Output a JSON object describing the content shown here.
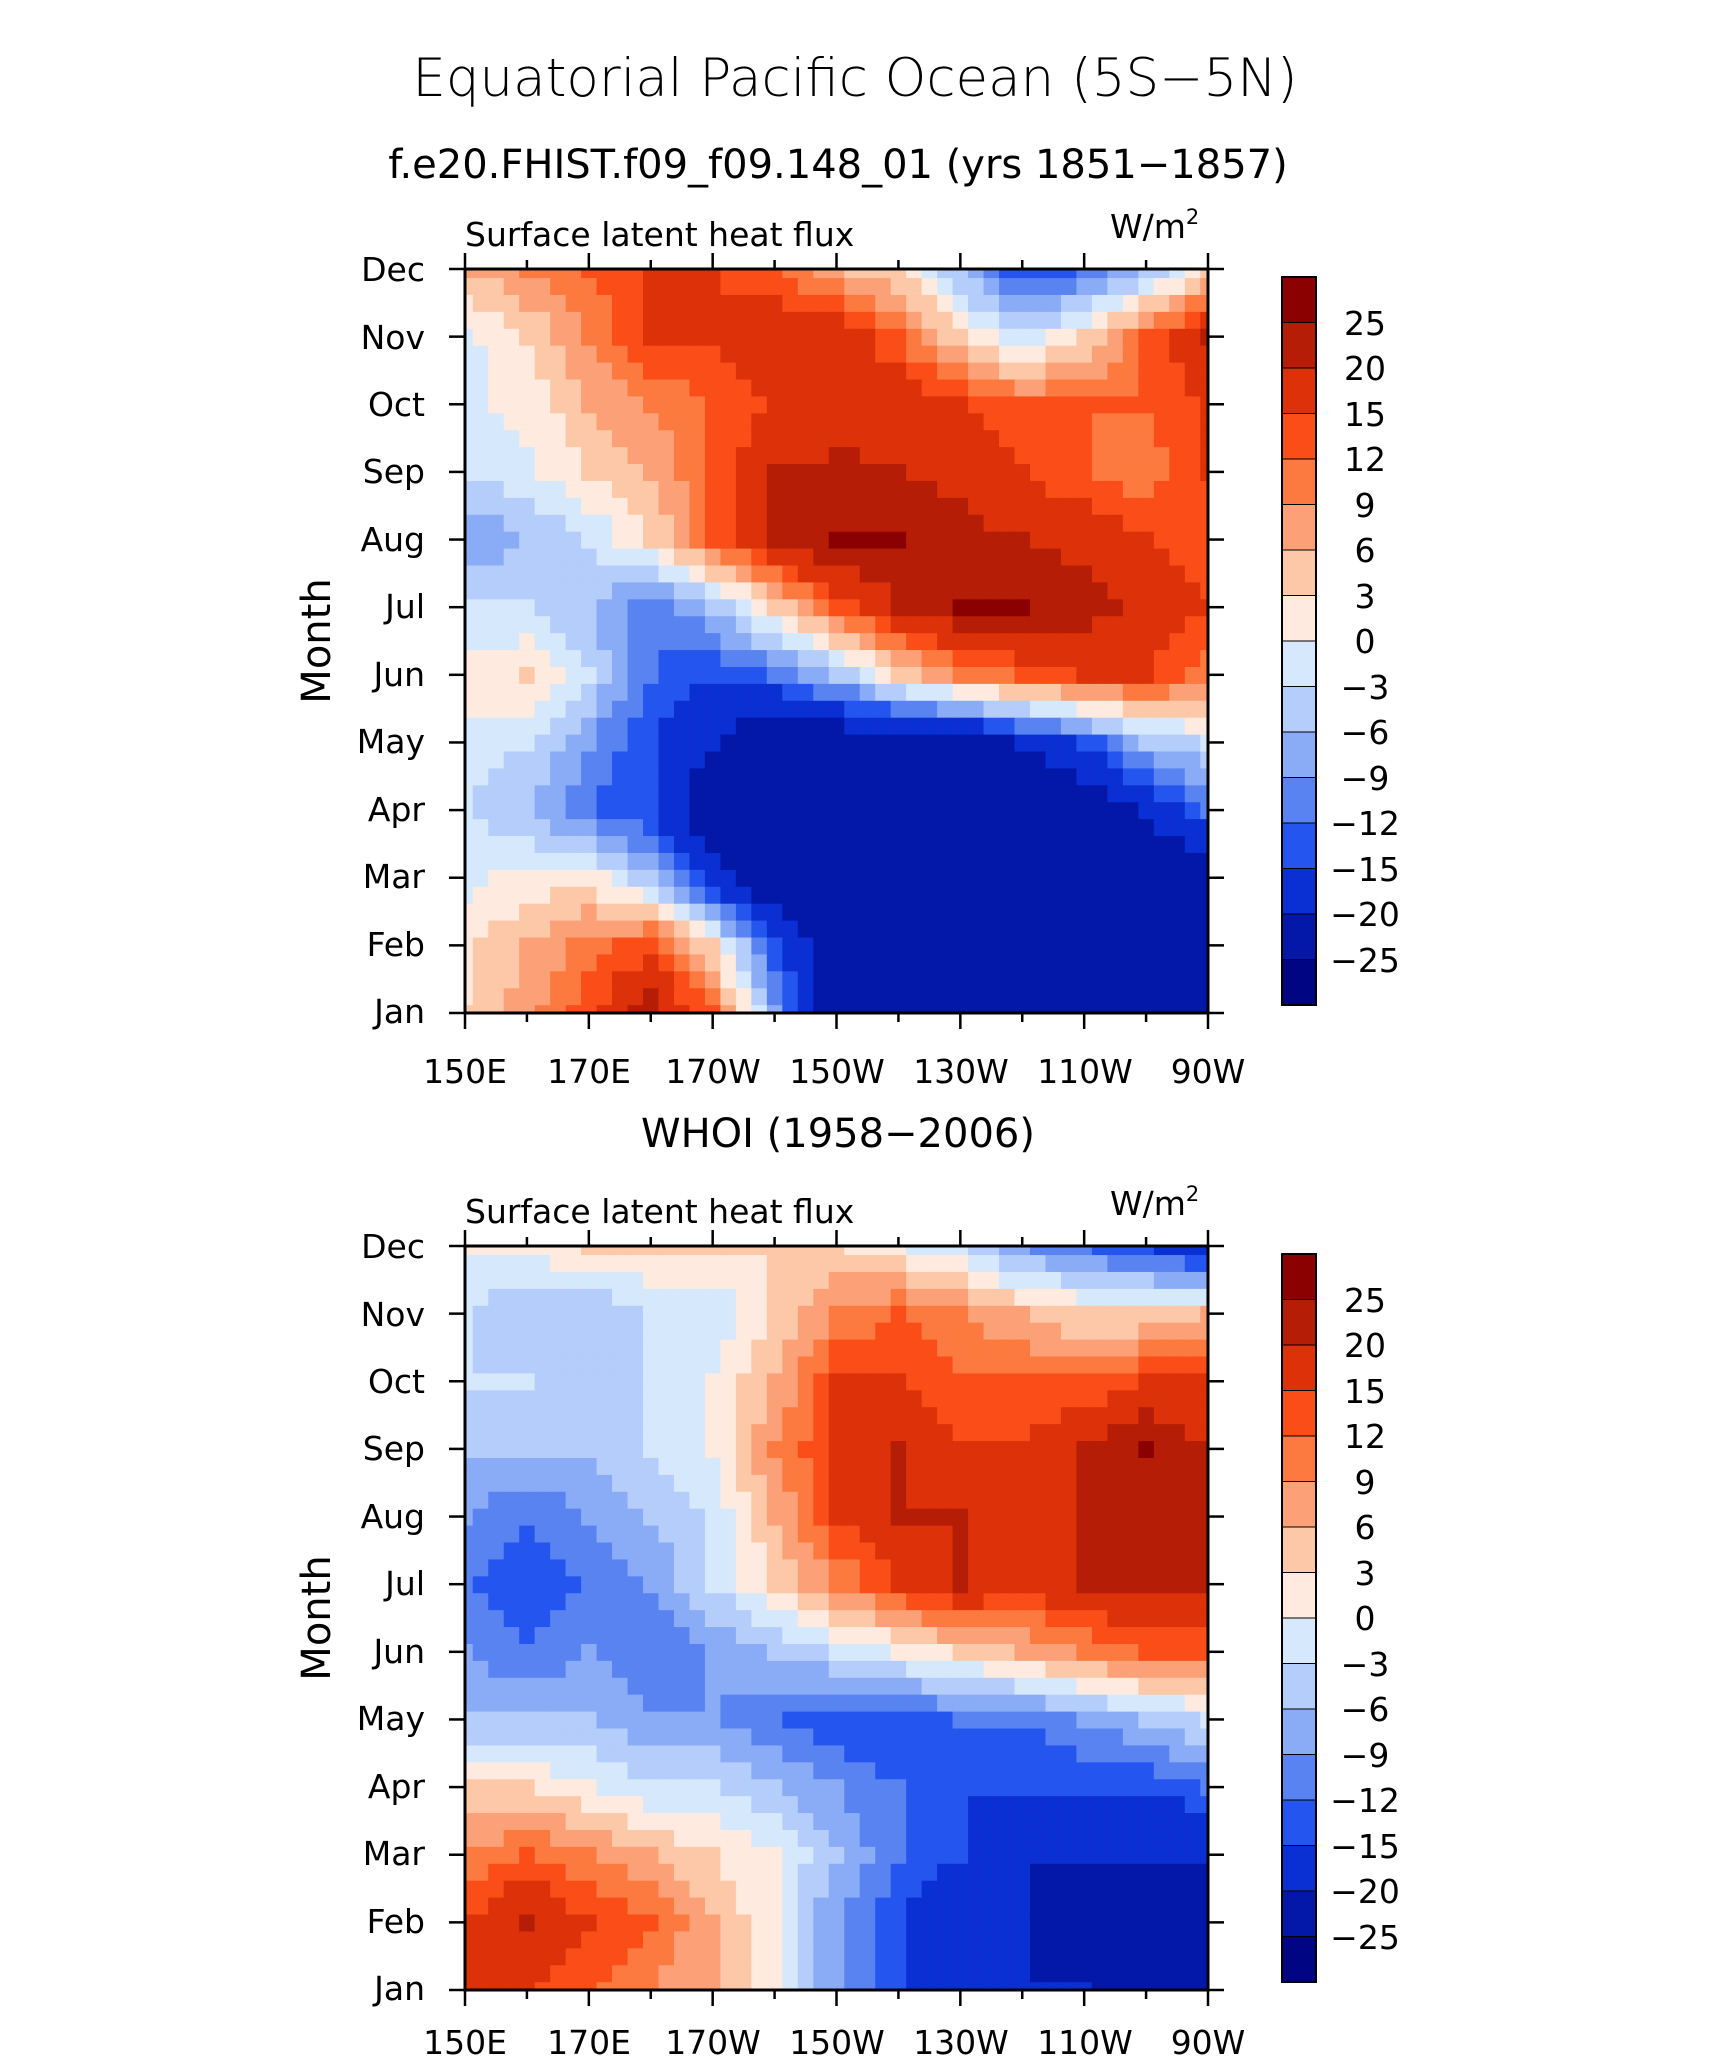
{
  "figure": {
    "title": "Equatorial Pacific Ocean (5S−5N)",
    "subtitle_top": "f.e20.FHIST.f09_f09.148_01 (yrs 1851−1857)",
    "subtitle_bottom": "WHOI (1958−2006)"
  },
  "colorbar": {
    "labels": [
      "25",
      "20",
      "15",
      "12",
      "9",
      "6",
      "3",
      "0",
      "−3",
      "−6",
      "−9",
      "−12",
      "−15",
      "−20",
      "−25"
    ],
    "levels": [
      25,
      20,
      15,
      12,
      9,
      6,
      3,
      0,
      -3,
      -6,
      -9,
      -12,
      -15,
      -20,
      -25
    ],
    "colors": [
      "#8b0000",
      "#b51d06",
      "#dc3109",
      "#fa4d17",
      "#fc7a3f",
      "#fca077",
      "#fdc8a7",
      "#feeade",
      "#d6e8fc",
      "#b5cdfa",
      "#8aabf5",
      "#5a83f2",
      "#2456ef",
      "#0a2fd2",
      "#0318a8",
      "#000584"
    ]
  },
  "chart_data": [
    {
      "type": "heatmap",
      "title": "Surface latent heat flux",
      "units": "W/m²",
      "units_label": "W/m",
      "units_sup": "2",
      "ylabel": "Month",
      "xlabel": "",
      "x_ticks": [
        "150E",
        "170E",
        "170W",
        "150W",
        "130W",
        "110W",
        "90W"
      ],
      "x_range_deg_east": [
        150,
        270
      ],
      "y_ticks": [
        "Jan",
        "Feb",
        "Mar",
        "Apr",
        "May",
        "Jun",
        "Jul",
        "Aug",
        "Sep",
        "Oct",
        "Nov",
        "Dec"
      ],
      "x_lon": [
        150,
        160,
        170,
        180,
        190,
        200,
        210,
        220,
        230,
        240,
        250,
        260,
        270
      ],
      "grid": [
        [
          3,
          8,
          14,
          22,
          12,
          -8,
          -25,
          -25,
          -25,
          -25,
          -25,
          -25,
          -25
        ],
        [
          2,
          6,
          10,
          14,
          3,
          -15,
          -25,
          -25,
          -25,
          -25,
          -25,
          -25,
          -25
        ],
        [
          -1,
          1,
          2,
          -6,
          -18,
          -25,
          -25,
          -25,
          -25,
          -25,
          -25,
          -25,
          -25
        ],
        [
          -3,
          -6,
          -12,
          -15,
          -25,
          -25,
          -25,
          -25,
          -25,
          -25,
          -25,
          -20,
          -12
        ],
        [
          -1,
          -3,
          -9,
          -15,
          -20,
          -25,
          -25,
          -25,
          -25,
          -20,
          -15,
          -6,
          -3
        ],
        [
          1,
          3,
          -3,
          -12,
          -15,
          -12,
          -6,
          3,
          9,
          12,
          15,
          15,
          10
        ],
        [
          -3,
          -3,
          -6,
          -12,
          -6,
          3,
          12,
          20,
          25,
          25,
          22,
          18,
          15
        ],
        [
          -9,
          -6,
          -3,
          3,
          12,
          20,
          25,
          25,
          22,
          20,
          18,
          15,
          12
        ],
        [
          -3,
          -1,
          3,
          6,
          12,
          20,
          22,
          20,
          18,
          15,
          12,
          10,
          15
        ],
        [
          -1,
          1,
          6,
          9,
          12,
          15,
          15,
          18,
          15,
          12,
          12,
          12,
          15
        ],
        [
          -1,
          3,
          9,
          15,
          15,
          18,
          18,
          12,
          3,
          -3,
          3,
          12,
          20
        ],
        [
          6,
          9,
          12,
          15,
          15,
          12,
          6,
          3,
          -6,
          -15,
          -12,
          -6,
          3
        ]
      ]
    },
    {
      "type": "heatmap",
      "title": "Surface latent heat flux",
      "units": "W/m²",
      "units_label": "W/m",
      "units_sup": "2",
      "ylabel": "Month",
      "xlabel": "",
      "x_ticks": [
        "150E",
        "170E",
        "170W",
        "150W",
        "130W",
        "110W",
        "90W"
      ],
      "x_range_deg_east": [
        150,
        270
      ],
      "y_ticks": [
        "Jan",
        "Feb",
        "Mar",
        "Apr",
        "May",
        "Jun",
        "Jul",
        "Aug",
        "Sep",
        "Oct",
        "Nov",
        "Dec"
      ],
      "x_lon": [
        150,
        160,
        170,
        180,
        190,
        200,
        210,
        220,
        230,
        240,
        250,
        260,
        270
      ],
      "grid": [
        [
          15,
          15,
          12,
          9,
          6,
          0,
          -9,
          -15,
          -20,
          -20,
          -20,
          -25,
          -25
        ],
        [
          15,
          20,
          15,
          12,
          6,
          0,
          -9,
          -15,
          -20,
          -20,
          -25,
          -25,
          -25
        ],
        [
          9,
          12,
          9,
          6,
          3,
          0,
          -6,
          -12,
          -15,
          -20,
          -20,
          -20,
          -20
        ],
        [
          3,
          3,
          0,
          -3,
          -3,
          -6,
          -9,
          -12,
          -15,
          -15,
          -15,
          -15,
          -12
        ],
        [
          -6,
          -6,
          -6,
          -9,
          -9,
          -12,
          -15,
          -15,
          -12,
          -12,
          -9,
          -6,
          -3
        ],
        [
          -9,
          -12,
          -9,
          -12,
          -9,
          -6,
          -3,
          0,
          3,
          6,
          9,
          12,
          12
        ],
        [
          -12,
          -15,
          -12,
          -9,
          -3,
          3,
          9,
          15,
          20,
          15,
          20,
          20,
          20
        ],
        [
          -9,
          -12,
          -9,
          -6,
          -3,
          6,
          15,
          20,
          20,
          15,
          20,
          20,
          20
        ],
        [
          -6,
          -6,
          -6,
          -3,
          0,
          9,
          15,
          20,
          15,
          15,
          20,
          25,
          20
        ],
        [
          -3,
          -3,
          -6,
          -3,
          0,
          6,
          15,
          15,
          12,
          12,
          12,
          15,
          15
        ],
        [
          -3,
          -6,
          -6,
          -3,
          -3,
          3,
          9,
          12,
          9,
          6,
          3,
          3,
          6
        ],
        [
          0,
          1,
          3,
          3,
          3,
          3,
          3,
          0,
          -3,
          -9,
          -12,
          -15,
          -20
        ]
      ]
    }
  ]
}
